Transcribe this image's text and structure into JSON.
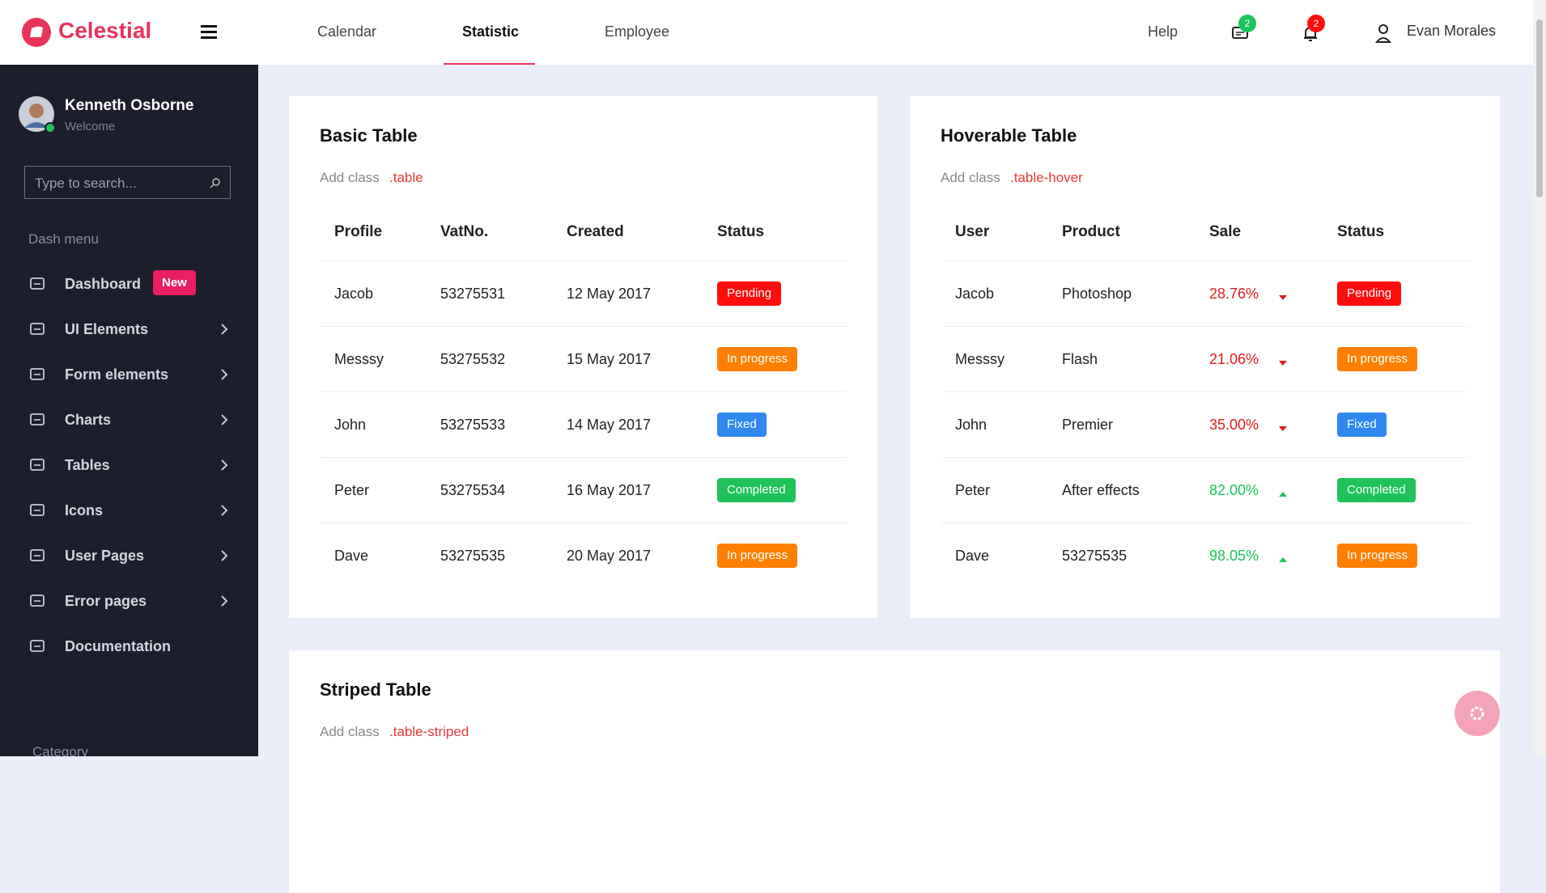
{
  "brand": "Celestial",
  "nav": [
    "Calendar",
    "Statistic",
    "Employee"
  ],
  "help": "Help",
  "message_count": 2,
  "notification_count": 2,
  "user_name": "Evan Morales",
  "sidebar": {
    "profile_name": "Kenneth Osborne",
    "profile_status": "Welcome",
    "search_placeholder": "Type to search...",
    "section": "Dash menu",
    "menu": [
      {
        "label": "Dashboard",
        "badge": "New"
      },
      {
        "label": "UI Elements"
      },
      {
        "label": "Form elements"
      },
      {
        "label": "Charts"
      },
      {
        "label": "Tables"
      },
      {
        "label": "Icons"
      },
      {
        "label": "User Pages"
      },
      {
        "label": "Error pages"
      },
      {
        "label": "Documentation"
      }
    ],
    "category": "Category"
  },
  "tables": [
    {
      "title": "Basic Table",
      "hint": "Add class",
      "class_name": ".table",
      "columns": [
        "Profile",
        "VatNo.",
        "Created",
        "Status"
      ],
      "rows": [
        [
          "Jacob",
          "53275531",
          "12 May 2017",
          {
            "label": "Pending",
            "color": "#ff0d0d"
          }
        ],
        [
          "Messsy",
          "53275532",
          "15 May 2017",
          {
            "label": "In progress",
            "color": "#ff7f00"
          }
        ],
        [
          "John",
          "53275533",
          "14 May 2017",
          {
            "label": "Fixed",
            "color": "#2f87f0"
          }
        ],
        [
          "Peter",
          "53275534",
          "16 May 2017",
          {
            "label": "Completed",
            "color": "#1fc35a"
          }
        ],
        [
          "Dave",
          "53275535",
          "20 May 2017",
          {
            "label": "In progress",
            "color": "#ff7f00"
          }
        ]
      ]
    },
    {
      "title": "Hoverable Table",
      "hint": "Add class",
      "class_name": ".table-hover",
      "columns": [
        "User",
        "Product",
        "Sale",
        "Status"
      ],
      "rows": [
        [
          "Jacob",
          "Photoshop",
          {
            "label": "28.76%",
            "trend": "down"
          },
          {
            "label": "Pending",
            "color": "#ff0d0d"
          }
        ],
        [
          "Messsy",
          "Flash",
          {
            "label": "21.06%",
            "trend": "down"
          },
          {
            "label": "In progress",
            "color": "#ff7f00"
          }
        ],
        [
          "John",
          "Premier",
          {
            "label": "35.00%",
            "trend": "down"
          },
          {
            "label": "Fixed",
            "color": "#2f87f0"
          }
        ],
        [
          "Peter",
          "After effects",
          {
            "label": "82.00%",
            "trend": "up"
          },
          {
            "label": "Completed",
            "color": "#1fc35a"
          }
        ],
        [
          "Dave",
          "53275535",
          {
            "label": "98.05%",
            "trend": "up"
          },
          {
            "label": "In progress",
            "color": "#ff7f00"
          }
        ]
      ]
    },
    {
      "title": "Striped Table",
      "hint": "Add class",
      "class_name": ".table-striped"
    }
  ]
}
